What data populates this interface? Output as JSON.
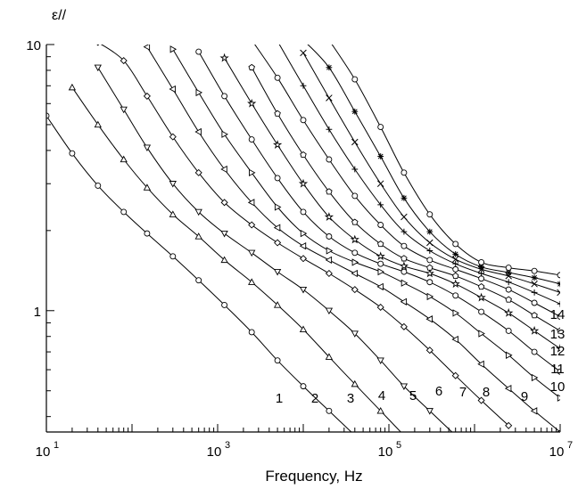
{
  "chart_data": {
    "type": "line",
    "xlabel": "Frequency, Hz",
    "ylabel": "ε//",
    "x_scale": "log",
    "y_scale": "log",
    "xlim": [
      10,
      10000000
    ],
    "ylim": [
      0.35,
      10
    ],
    "grid": false,
    "x_ticks": [
      {
        "value": 10,
        "base": "10",
        "exp": "1"
      },
      {
        "value": 1000,
        "base": "10",
        "exp": "3"
      },
      {
        "value": 100000,
        "base": "10",
        "exp": "5"
      },
      {
        "value": 10000000,
        "base": "10",
        "exp": "7"
      }
    ],
    "y_ticks": [
      {
        "value": 1,
        "label": "1"
      },
      {
        "value": 10,
        "label": "10"
      }
    ],
    "x": [
      10,
      20,
      40,
      80,
      150,
      300,
      600,
      1200,
      2500,
      5000,
      10000,
      20000,
      40000,
      80000,
      150000,
      300000,
      600000,
      1200000,
      2500000,
      5000000,
      10000000
    ],
    "series": [
      {
        "name": "1",
        "marker": "circle",
        "values": [
          5.4,
          3.9,
          2.95,
          2.35,
          1.95,
          1.6,
          1.3,
          1.05,
          0.83,
          0.65,
          0.52,
          0.42,
          0.34,
          null,
          null,
          null,
          null,
          null,
          null,
          null,
          null
        ]
      },
      {
        "name": "2",
        "marker": "triangle-up",
        "values": [
          null,
          6.9,
          5.0,
          3.7,
          2.9,
          2.3,
          1.9,
          1.55,
          1.28,
          1.05,
          0.85,
          0.67,
          0.53,
          0.42,
          0.34,
          null,
          null,
          null,
          null,
          null,
          null
        ]
      },
      {
        "name": "3",
        "marker": "triangle-down",
        "values": [
          null,
          null,
          8.2,
          5.7,
          4.1,
          3.0,
          2.35,
          1.95,
          1.65,
          1.4,
          1.2,
          1.0,
          0.82,
          0.65,
          0.52,
          0.42,
          0.34,
          null,
          null,
          null,
          null
        ]
      },
      {
        "name": "4",
        "marker": "diamond",
        "values": [
          null,
          null,
          10.2,
          8.7,
          6.4,
          4.5,
          3.3,
          2.55,
          2.1,
          1.8,
          1.57,
          1.38,
          1.2,
          1.03,
          0.87,
          0.71,
          0.57,
          0.46,
          0.37,
          null,
          null
        ]
      },
      {
        "name": "5",
        "marker": "triangle-left",
        "values": [
          null,
          null,
          null,
          null,
          9.8,
          6.8,
          4.7,
          3.4,
          2.55,
          2.05,
          1.75,
          1.55,
          1.38,
          1.23,
          1.08,
          0.93,
          0.78,
          0.63,
          0.51,
          0.42,
          0.35
        ]
      },
      {
        "name": "6",
        "marker": "triangle-right",
        "values": [
          null,
          null,
          null,
          null,
          null,
          9.6,
          6.6,
          4.6,
          3.3,
          2.45,
          1.95,
          1.68,
          1.52,
          1.4,
          1.27,
          1.13,
          0.98,
          0.82,
          0.68,
          0.56,
          0.47
        ]
      },
      {
        "name": "7",
        "marker": "circle",
        "values": [
          null,
          null,
          null,
          null,
          null,
          null,
          9.4,
          6.4,
          4.4,
          3.15,
          2.35,
          1.9,
          1.65,
          1.5,
          1.4,
          1.28,
          1.14,
          0.99,
          0.84,
          0.7,
          0.59
        ]
      },
      {
        "name": "8",
        "marker": "star",
        "values": [
          null,
          null,
          null,
          null,
          null,
          null,
          null,
          8.9,
          6.0,
          4.2,
          3.0,
          2.25,
          1.85,
          1.6,
          1.47,
          1.38,
          1.26,
          1.12,
          0.98,
          0.84,
          0.72
        ]
      },
      {
        "name": "9",
        "marker": "pentagon",
        "values": [
          null,
          null,
          null,
          null,
          null,
          null,
          null,
          null,
          8.2,
          5.5,
          3.85,
          2.8,
          2.15,
          1.78,
          1.57,
          1.45,
          1.35,
          1.23,
          1.1,
          0.96,
          0.84
        ]
      },
      {
        "name": "10",
        "marker": "circle",
        "values": [
          null,
          null,
          null,
          null,
          null,
          null,
          null,
          null,
          10.4,
          7.5,
          5.2,
          3.7,
          2.7,
          2.1,
          1.75,
          1.55,
          1.43,
          1.32,
          1.2,
          1.07,
          0.95
        ]
      },
      {
        "name": "11",
        "marker": "plus",
        "values": [
          null,
          null,
          null,
          null,
          null,
          null,
          null,
          null,
          null,
          10.3,
          7.0,
          4.8,
          3.4,
          2.5,
          1.98,
          1.68,
          1.5,
          1.38,
          1.28,
          1.17,
          1.06
        ]
      },
      {
        "name": "12",
        "marker": "cross",
        "values": [
          null,
          null,
          null,
          null,
          null,
          null,
          null,
          null,
          null,
          null,
          9.3,
          6.3,
          4.3,
          3.0,
          2.25,
          1.8,
          1.56,
          1.43,
          1.35,
          1.26,
          1.17
        ]
      },
      {
        "name": "13",
        "marker": "asterisk",
        "values": [
          null,
          null,
          null,
          null,
          null,
          null,
          null,
          null,
          null,
          null,
          10.4,
          8.2,
          5.6,
          3.8,
          2.65,
          1.98,
          1.63,
          1.46,
          1.39,
          1.33,
          1.26
        ]
      },
      {
        "name": "14",
        "marker": "circle",
        "values": [
          null,
          null,
          null,
          null,
          null,
          null,
          null,
          null,
          null,
          null,
          null,
          10.4,
          7.4,
          4.9,
          3.3,
          2.3,
          1.78,
          1.52,
          1.45,
          1.41,
          1.36
        ]
      }
    ]
  }
}
